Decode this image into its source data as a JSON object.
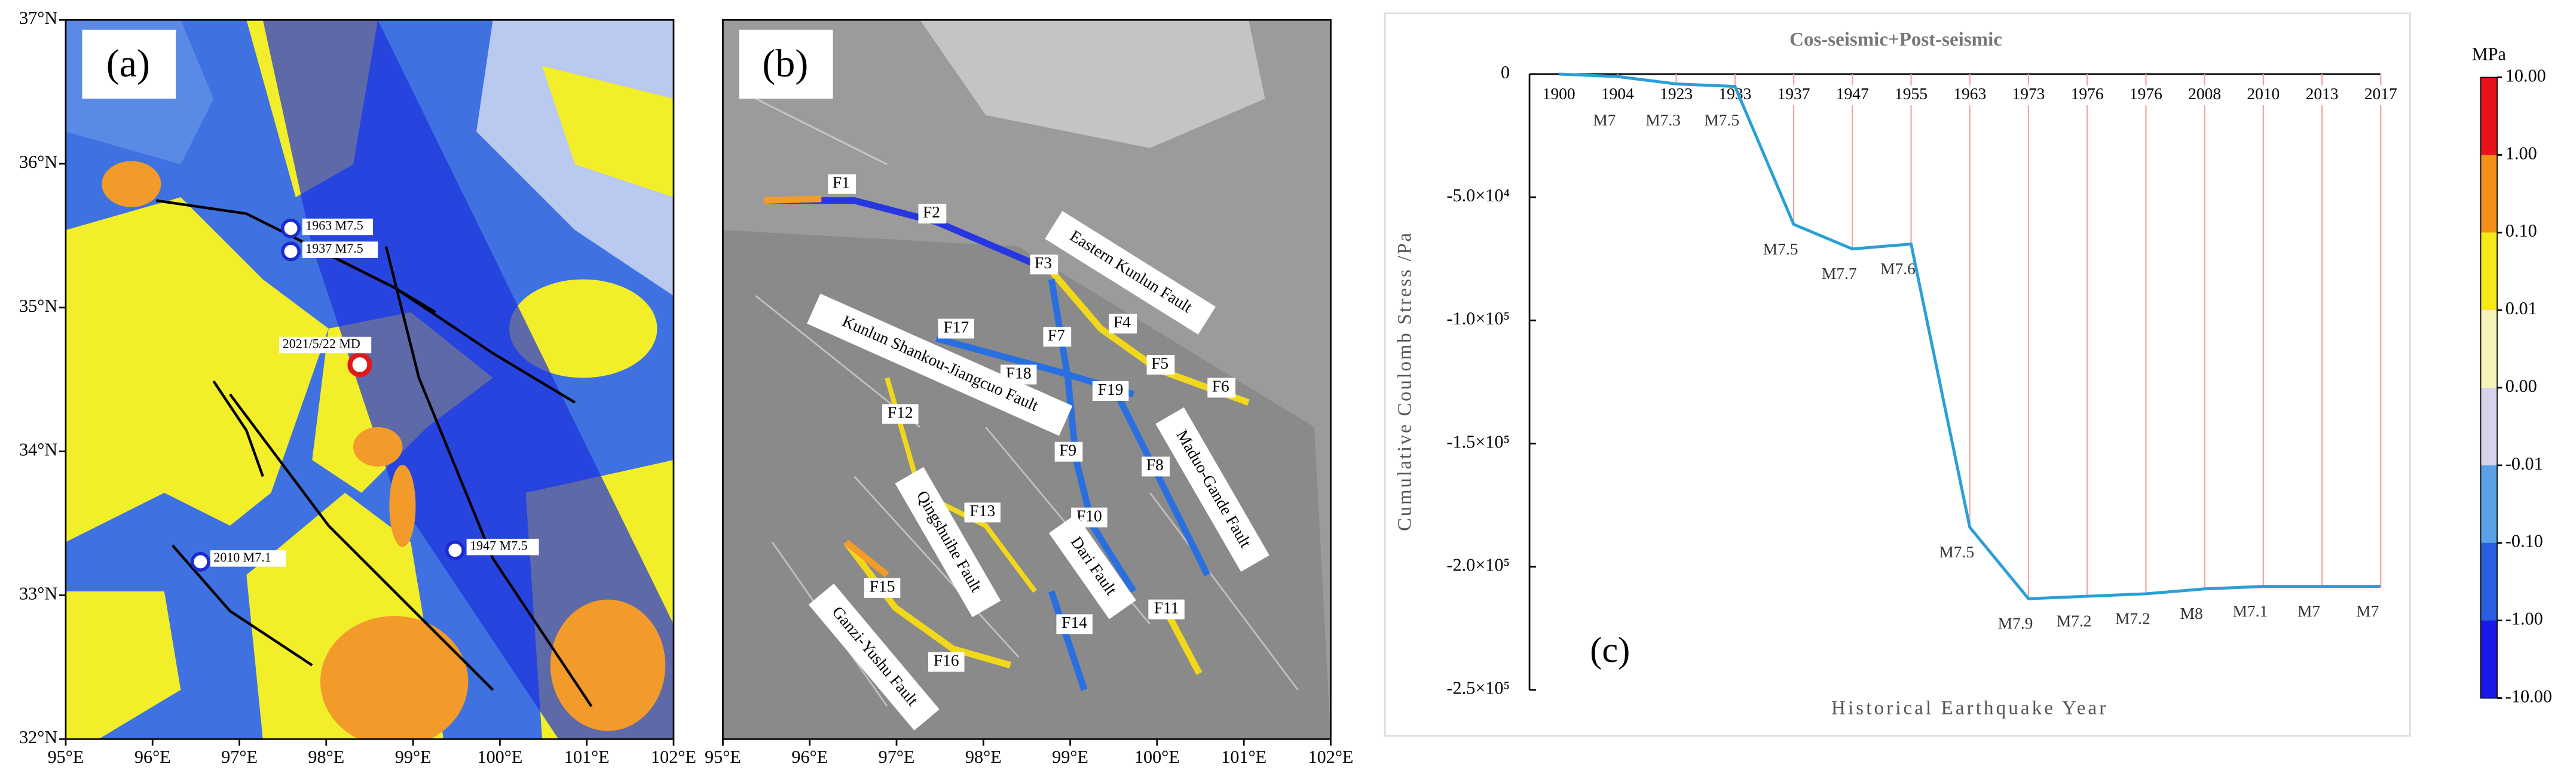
{
  "map_a": {
    "label": "(a)",
    "events": [
      "1963 M7.5",
      "1937 M7.5",
      "2021/5/22 MD",
      "2010 M7.1",
      "1947 M7.5"
    ],
    "xlim": [
      95,
      102
    ],
    "ylim": [
      32,
      37
    ],
    "xticks": [
      {
        "value": 95,
        "label": "95°E"
      },
      {
        "value": 96,
        "label": "96°E"
      },
      {
        "value": 97,
        "label": "97°E"
      },
      {
        "value": 98,
        "label": "98°E"
      },
      {
        "value": 99,
        "label": "99°E"
      },
      {
        "value": 100,
        "label": "100°E"
      },
      {
        "value": 101,
        "label": "101°E"
      },
      {
        "value": 102,
        "label": "102°E"
      }
    ],
    "yticks": [
      {
        "value": 37,
        "label": "37°N"
      },
      {
        "value": 36,
        "label": "36°N"
      },
      {
        "value": 35,
        "label": "35°N"
      },
      {
        "value": 34,
        "label": "34°N"
      },
      {
        "value": 33,
        "label": "33°N"
      },
      {
        "value": 32,
        "label": "32°N"
      }
    ]
  },
  "map_b": {
    "label": "(b)",
    "faults": [
      "F1",
      "F2",
      "F3",
      "F4",
      "F5",
      "F6",
      "F7",
      "F8",
      "F9",
      "F10",
      "F11",
      "F12",
      "F13",
      "F14",
      "F15",
      "F16",
      "F17",
      "F18",
      "F19"
    ],
    "fault_names": [
      "Eastern Kunlun Fault",
      "Kunlun Shankou-Jiangcuo Fault",
      "Maduo-Gande Fault",
      "Qingshuihe Fault",
      "Dari Fault",
      "Ganzi-Yushu Fault"
    ],
    "xlim": [
      95,
      102
    ],
    "xticks": [
      {
        "value": 95,
        "label": "95°E"
      },
      {
        "value": 96,
        "label": "96°E"
      },
      {
        "value": 97,
        "label": "97°E"
      },
      {
        "value": 98,
        "label": "98°E"
      },
      {
        "value": 99,
        "label": "99°E"
      },
      {
        "value": 100,
        "label": "100°E"
      },
      {
        "value": 101,
        "label": "101°E"
      },
      {
        "value": 102,
        "label": "102°E"
      }
    ]
  },
  "chart_data": {
    "type": "line",
    "title": "Cos-seismic+Post-seismic",
    "panel_label": "(c)",
    "y_label": "Cumulative Coulomb Stress /Pa",
    "x_label": "Historical Earthquake Year",
    "categories": [
      "1900",
      "1904",
      "1923",
      "1933",
      "1937",
      "1947",
      "1955",
      "1963",
      "1973",
      "1976",
      "1976",
      "2008",
      "2010",
      "2013",
      "2017"
    ],
    "values": [
      0,
      -1000,
      -4000,
      -5000,
      -61000,
      -71000,
      -69000,
      -184000,
      -213000,
      -212000,
      -211000,
      -209000,
      -208000,
      -208000,
      -208000
    ],
    "point_labels": [
      null,
      "M7",
      "M7.3",
      "M7.5",
      "M7.5",
      "M7.7",
      "M7.6",
      "M7.5",
      "M7.9",
      "M7.2",
      "M7.2",
      "M8",
      "M7.1",
      "M7",
      "M7"
    ],
    "color": "#2a9fd6",
    "drop_line_color": "#f4a3a3",
    "ylim": [
      -250000,
      0
    ],
    "yticks": [
      {
        "value": 0,
        "label": "0"
      },
      {
        "value": -50000,
        "label": "-5.0×10⁴"
      },
      {
        "value": -100000,
        "label": "-1.0×10⁵"
      },
      {
        "value": -150000,
        "label": "-1.5×10⁵"
      },
      {
        "value": -200000,
        "label": "-2.0×10⁵"
      },
      {
        "value": -250000,
        "label": "-2.5×10⁵"
      }
    ]
  },
  "colorbar": {
    "title": "MPa",
    "ticks": [
      {
        "value": 10,
        "label": "10.00"
      },
      {
        "value": 1,
        "label": "1.00"
      },
      {
        "value": 0.1,
        "label": "0.10"
      },
      {
        "value": 0.01,
        "label": "0.01"
      },
      {
        "value": 0,
        "label": "0.00"
      },
      {
        "value": -0.01,
        "label": "-0.01"
      },
      {
        "value": -0.1,
        "label": "-0.10"
      },
      {
        "value": -1,
        "label": "-1.00"
      },
      {
        "value": -10,
        "label": "-10.00"
      }
    ],
    "colors": [
      "#e8121a",
      "#f39019",
      "#f7e81c",
      "#f5f3b8",
      "#d6d3ea",
      "#5aa1e6",
      "#2a5fe0",
      "#1a1ae8"
    ]
  }
}
